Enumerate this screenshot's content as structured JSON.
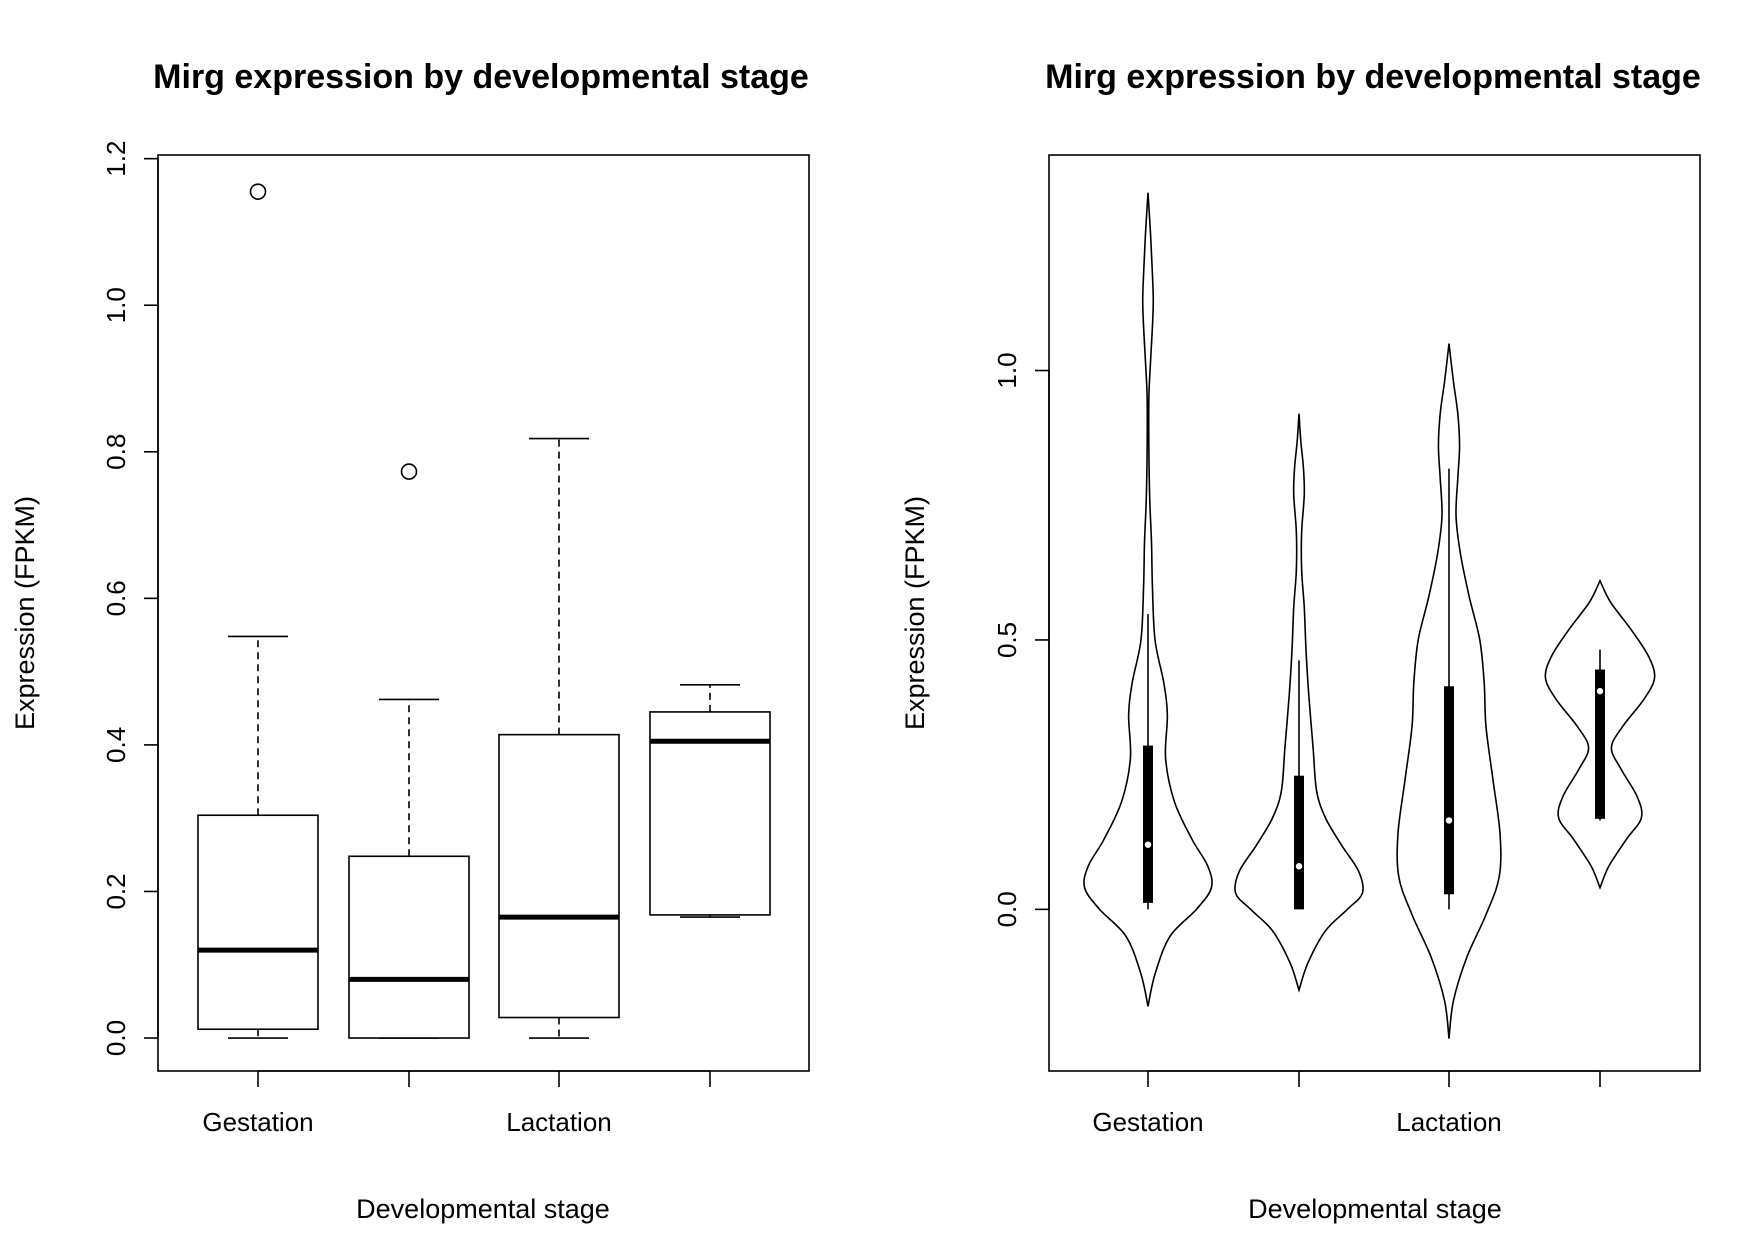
{
  "chart_data": [
    {
      "type": "box",
      "title": "Mirg expression by developmental stage",
      "xlabel": "Developmental stage",
      "ylabel": "Expression (FPKM)",
      "ylim": [
        -0.045,
        1.205
      ],
      "yticks": [
        0.0,
        0.2,
        0.4,
        0.6,
        0.8,
        1.0,
        1.2
      ],
      "ytick_labels": [
        "0.0",
        "0.2",
        "0.4",
        "0.6",
        "0.8",
        "1.0",
        "1.2"
      ],
      "xtick_labels": [
        "Gestation",
        "",
        "Lactation",
        ""
      ],
      "grid": false,
      "groups": [
        {
          "min": 0.0,
          "q1": 0.012,
          "median": 0.12,
          "q3": 0.304,
          "max": 0.548,
          "outliers": [
            1.155
          ]
        },
        {
          "min": 0.0,
          "q1": 0.0,
          "median": 0.08,
          "q3": 0.248,
          "max": 0.462,
          "outliers": [
            0.773
          ]
        },
        {
          "min": 0.0,
          "q1": 0.028,
          "median": 0.165,
          "q3": 0.414,
          "max": 0.818,
          "outliers": []
        },
        {
          "min": 0.165,
          "q1": 0.168,
          "median": 0.405,
          "q3": 0.445,
          "max": 0.482,
          "outliers": []
        }
      ]
    },
    {
      "type": "violin",
      "title": "Mirg expression by developmental stage",
      "xlabel": "Developmental stage",
      "ylabel": "Expression (FPKM)",
      "ylim": [
        -0.3,
        1.4
      ],
      "yticks": [
        0.0,
        0.5,
        1.0
      ],
      "ytick_labels": [
        "0.0",
        "0.5",
        "1.0"
      ],
      "xtick_labels": [
        "Gestation",
        "",
        "Lactation",
        ""
      ],
      "grid": false,
      "groups": [
        {
          "min": 0.0,
          "q1": 0.012,
          "median": 0.12,
          "q3": 0.304,
          "max": 0.548,
          "density": [
            [
              -0.18,
              0.0
            ],
            [
              -0.12,
              0.08
            ],
            [
              -0.05,
              0.25
            ],
            [
              0.0,
              0.55
            ],
            [
              0.04,
              0.72
            ],
            [
              0.08,
              0.68
            ],
            [
              0.13,
              0.5
            ],
            [
              0.2,
              0.3
            ],
            [
              0.28,
              0.2
            ],
            [
              0.36,
              0.22
            ],
            [
              0.42,
              0.18
            ],
            [
              0.5,
              0.08
            ],
            [
              0.6,
              0.05
            ],
            [
              0.68,
              0.04
            ],
            [
              0.76,
              0.02
            ],
            [
              0.85,
              0.01
            ],
            [
              0.95,
              0.01
            ],
            [
              1.02,
              0.03
            ],
            [
              1.08,
              0.05
            ],
            [
              1.13,
              0.06
            ],
            [
              1.18,
              0.05
            ],
            [
              1.25,
              0.03
            ],
            [
              1.33,
              0.0
            ]
          ]
        },
        {
          "min": 0.0,
          "q1": 0.0,
          "median": 0.08,
          "q3": 0.248,
          "max": 0.462,
          "density": [
            [
              -0.15,
              0.0
            ],
            [
              -0.1,
              0.1
            ],
            [
              -0.04,
              0.3
            ],
            [
              0.0,
              0.55
            ],
            [
              0.03,
              0.72
            ],
            [
              0.07,
              0.68
            ],
            [
              0.12,
              0.48
            ],
            [
              0.17,
              0.3
            ],
            [
              0.22,
              0.2
            ],
            [
              0.3,
              0.16
            ],
            [
              0.4,
              0.11
            ],
            [
              0.48,
              0.08
            ],
            [
              0.56,
              0.06
            ],
            [
              0.63,
              0.03
            ],
            [
              0.7,
              0.03
            ],
            [
              0.77,
              0.06
            ],
            [
              0.82,
              0.05
            ],
            [
              0.87,
              0.02
            ],
            [
              0.92,
              0.0
            ]
          ]
        },
        {
          "min": 0.0,
          "q1": 0.028,
          "median": 0.165,
          "q3": 0.414,
          "max": 0.818,
          "density": [
            [
              -0.24,
              0.0
            ],
            [
              -0.17,
              0.05
            ],
            [
              -0.09,
              0.2
            ],
            [
              -0.01,
              0.42
            ],
            [
              0.06,
              0.57
            ],
            [
              0.14,
              0.58
            ],
            [
              0.24,
              0.5
            ],
            [
              0.34,
              0.42
            ],
            [
              0.42,
              0.4
            ],
            [
              0.5,
              0.35
            ],
            [
              0.58,
              0.23
            ],
            [
              0.66,
              0.13
            ],
            [
              0.73,
              0.08
            ],
            [
              0.8,
              0.1
            ],
            [
              0.86,
              0.12
            ],
            [
              0.92,
              0.1
            ],
            [
              0.98,
              0.05
            ],
            [
              1.05,
              0.0
            ]
          ]
        },
        {
          "min": 0.165,
          "q1": 0.168,
          "median": 0.405,
          "q3": 0.445,
          "max": 0.482,
          "density": [
            [
              0.04,
              0.0
            ],
            [
              0.08,
              0.1
            ],
            [
              0.13,
              0.3
            ],
            [
              0.17,
              0.47
            ],
            [
              0.21,
              0.42
            ],
            [
              0.26,
              0.24
            ],
            [
              0.3,
              0.13
            ],
            [
              0.34,
              0.26
            ],
            [
              0.39,
              0.5
            ],
            [
              0.43,
              0.62
            ],
            [
              0.47,
              0.55
            ],
            [
              0.52,
              0.35
            ],
            [
              0.57,
              0.12
            ],
            [
              0.61,
              0.0
            ]
          ]
        }
      ]
    }
  ]
}
